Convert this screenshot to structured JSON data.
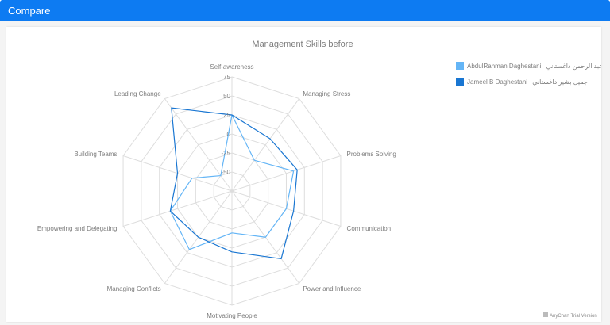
{
  "window": {
    "title": "Compare"
  },
  "colors": {
    "header": "#0d7bf2",
    "grid": "#dddddd",
    "series1": "#64b5f6",
    "series2": "#1976d2"
  },
  "credits": "AnyChart Trial Version",
  "chart_data": {
    "type": "radar",
    "title": "Management Skills before",
    "categories": [
      "Self-awareness",
      "Managing Stress",
      "Problems Solving",
      "Communication",
      "Power and Influence",
      "Motivating People",
      "Managing Conflicts",
      "Empowering and Delegating",
      "Building Teams",
      "Leading Change"
    ],
    "ylim": [
      -75,
      75
    ],
    "ticks": [
      -50,
      -25,
      0,
      25,
      50,
      75
    ],
    "grid": true,
    "legend_position": "top-right",
    "series": [
      {
        "name": "AbdulRahman Daghestani",
        "name_ar": "عبد الرحمن داغستاني",
        "color": "#64b5f6",
        "values": [
          25,
          -25,
          10,
          0,
          0,
          -20,
          20,
          10,
          -20,
          -50
        ]
      },
      {
        "name": "Jameel B Daghestani",
        "name_ar": "جميل بشير داغستاني",
        "color": "#1976d2",
        "values": [
          25,
          10,
          15,
          10,
          35,
          5,
          0,
          10,
          0,
          60
        ]
      }
    ]
  }
}
